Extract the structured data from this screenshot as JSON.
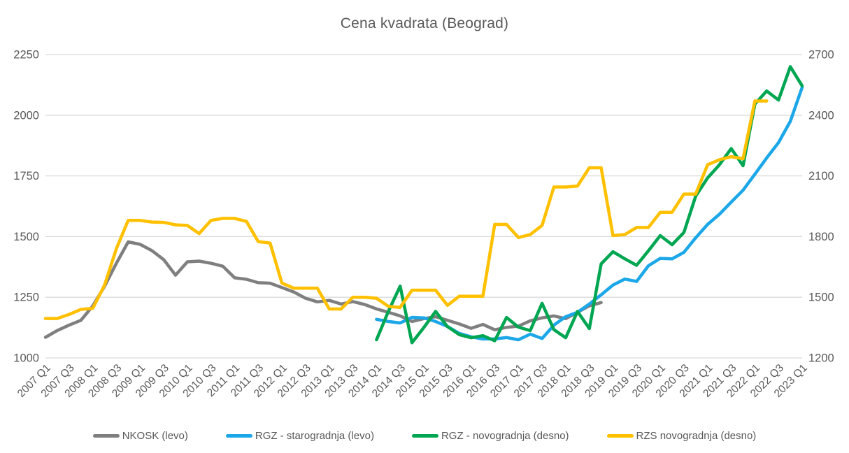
{
  "chart_data": {
    "type": "line",
    "title": "Cena kvadrata (Beograd)",
    "categories": [
      "2007 Q1",
      "2007 Q2",
      "2007 Q3",
      "2007 Q4",
      "2008 Q1",
      "2008 Q2",
      "2008 Q3",
      "2008 Q4",
      "2009 Q1",
      "2009 Q2",
      "2009 Q3",
      "2009 Q4",
      "2010 Q1",
      "2010 Q2",
      "2010 Q3",
      "2010 Q4",
      "2011 Q1",
      "2011 Q2",
      "2011 Q3",
      "2011 Q4",
      "2012 Q1",
      "2012 Q2",
      "2012 Q3",
      "2012 Q4",
      "2013 Q1",
      "2013 Q2",
      "2013 Q3",
      "2013 Q4",
      "2014 Q1",
      "2014 Q2",
      "2014 Q3",
      "2014 Q4",
      "2015 Q1",
      "2015 Q2",
      "2015 Q3",
      "2015 Q4",
      "2016 Q1",
      "2016 Q2",
      "2016 Q3",
      "2016 Q4",
      "2017 Q1",
      "2017 Q2",
      "2017 Q3",
      "2017 Q4",
      "2018 Q1",
      "2018 Q2",
      "2018 Q3",
      "2018 Q4",
      "2019 Q1",
      "2019 Q2",
      "2019 Q3",
      "2019 Q4",
      "2020 Q1",
      "2020 Q2",
      "2020 Q3",
      "2020 Q4",
      "2021 Q1",
      "2021 Q2",
      "2021 Q3",
      "2021 Q4",
      "2022 Q1",
      "2022 Q2",
      "2022 Q3",
      "2022 Q4",
      "2023 Q1"
    ],
    "x_label_every": 2,
    "grid": true,
    "legend_position": "bottom",
    "axes": {
      "left": {
        "min": 1000,
        "max": 2250,
        "ticks": [
          1000,
          1250,
          1500,
          1750,
          2000,
          2250
        ]
      },
      "right": {
        "min": 1200,
        "max": 2700,
        "ticks": [
          1200,
          1500,
          1800,
          2100,
          2400,
          2700
        ]
      }
    },
    "series": [
      {
        "name": "NKOSK (levo)",
        "axis": "left",
        "color": "#7F7F7F",
        "start": 0,
        "values": [
          1085,
          1113,
          1135,
          1155,
          1214,
          1295,
          1390,
          1478,
          1468,
          1442,
          1405,
          1341,
          1396,
          1399,
          1390,
          1378,
          1330,
          1324,
          1310,
          1308,
          1290,
          1272,
          1246,
          1231,
          1237,
          1222,
          1232,
          1220,
          1202,
          1188,
          1173,
          1150,
          1162,
          1170,
          1155,
          1140,
          1122,
          1138,
          1116,
          1126,
          1131,
          1153,
          1165,
          1173,
          1162,
          1188,
          1215,
          1228
        ]
      },
      {
        "name": "RGZ - starogradnja (levo)",
        "axis": "left",
        "color": "#1BA7E8",
        "start": 28,
        "values": [
          1159,
          1150,
          1144,
          1167,
          1165,
          1150,
          1130,
          1101,
          1087,
          1078,
          1078,
          1084,
          1075,
          1098,
          1080,
          1135,
          1170,
          1188,
          1222,
          1260,
          1300,
          1325,
          1315,
          1380,
          1410,
          1408,
          1435,
          1495,
          1550,
          1592,
          1642,
          1691,
          1757,
          1824,
          1887,
          1975,
          2115
        ]
      },
      {
        "name": "RGZ - novogradnja (desno)",
        "axis": "right",
        "color": "#00A651",
        "start": 28,
        "values": [
          1290,
          1430,
          1555,
          1275,
          1350,
          1430,
          1355,
          1315,
          1300,
          1310,
          1285,
          1400,
          1352,
          1335,
          1470,
          1340,
          1300,
          1430,
          1345,
          1665,
          1725,
          1690,
          1658,
          1730,
          1805,
          1760,
          1820,
          2000,
          2090,
          2155,
          2235,
          2150,
          2455,
          2520,
          2475,
          2640,
          2545
        ]
      },
      {
        "name": "RZS novogradnja (desno)",
        "axis": "right",
        "color": "#FFC000",
        "start": 0,
        "values": [
          1395,
          1395,
          1415,
          1440,
          1445,
          1560,
          1740,
          1880,
          1880,
          1872,
          1870,
          1858,
          1855,
          1815,
          1880,
          1890,
          1890,
          1875,
          1775,
          1768,
          1570,
          1545,
          1545,
          1545,
          1442,
          1442,
          1500,
          1500,
          1495,
          1455,
          1450,
          1535,
          1535,
          1535,
          1460,
          1505,
          1505,
          1505,
          1860,
          1860,
          1795,
          1810,
          1855,
          2045,
          2045,
          2050,
          2140,
          2140,
          1805,
          1810,
          1845,
          1845,
          1920,
          1920,
          2010,
          2010,
          2155,
          2180,
          2195,
          2185,
          2470,
          2470
        ]
      }
    ]
  },
  "colors": {
    "text": "#595959",
    "grid": "#D9D9D9",
    "background": "#FFFFFF"
  }
}
